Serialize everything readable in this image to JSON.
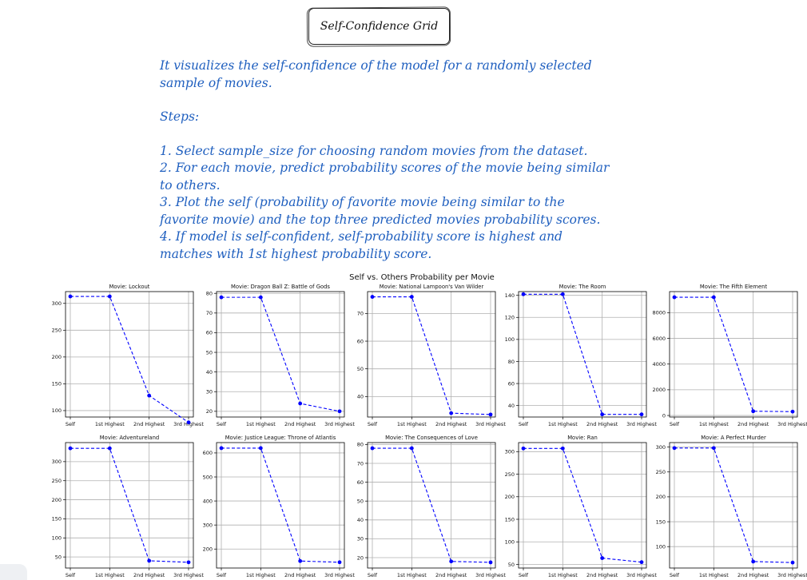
{
  "header": {
    "title": "Self-Confidence Grid"
  },
  "description": {
    "intro_lines": [
      "It visualizes the self-confidence of the model for a randomly selected",
      "sample of movies."
    ],
    "steps_heading": "Steps:",
    "steps_lines": [
      "1. Select sample_size for choosing random movies from the dataset.",
      "2. For each movie, predict probability scores of the movie being similar",
      "to others.",
      "3. Plot the self (probability of favorite movie being similar to the",
      "favorite movie) and the top three predicted movies probability scores.",
      "4. If model is self-confident, self-probability score is highest and",
      "matches with 1st highest probability score."
    ]
  },
  "chart_data": {
    "type": "line",
    "suptitle": "Self vs. Others Probability per Movie",
    "categories": [
      "Self",
      "1st Highest",
      "2nd Highest",
      "3rd Highest"
    ],
    "line_color": "#0000ff",
    "line_style": "dashed",
    "marker": "circle",
    "grid": true,
    "subplots": [
      {
        "title": "Movie: Lockout",
        "values": [
          313,
          313,
          128,
          78
        ],
        "yticks": [
          100,
          150,
          200,
          250,
          300
        ],
        "ylim": [
          88,
          322
        ]
      },
      {
        "title": "Movie: Dragon Ball Z: Battle of Gods",
        "values": [
          78,
          78,
          24,
          20
        ],
        "yticks": [
          20,
          30,
          40,
          50,
          60,
          70,
          80
        ],
        "ylim": [
          17.1,
          80.9
        ]
      },
      {
        "title": "Movie: National Lampoon's Van Wilder",
        "values": [
          76,
          76,
          34,
          33.5
        ],
        "yticks": [
          40,
          50,
          60,
          70
        ],
        "ylim": [
          32.6,
          77.9
        ]
      },
      {
        "title": "Movie: The Room",
        "values": [
          141,
          141,
          32,
          32
        ],
        "yticks": [
          40,
          60,
          80,
          100,
          120,
          140
        ],
        "ylim": [
          29.6,
          143.4
        ]
      },
      {
        "title": "Movie: The Fifth Element",
        "values": [
          9200,
          9200,
          330,
          300
        ],
        "yticks": [
          0,
          2000,
          4000,
          6000,
          8000
        ],
        "ylim": [
          -121,
          9640
        ]
      },
      {
        "title": "Movie: Adventureland",
        "values": [
          335,
          335,
          40,
          36
        ],
        "yticks": [
          50,
          100,
          150,
          200,
          250,
          300
        ],
        "ylim": [
          21,
          350
        ]
      },
      {
        "title": "Movie: Justice League: Throne of Atlantis",
        "values": [
          620,
          620,
          150,
          145
        ],
        "yticks": [
          200,
          300,
          400,
          500,
          600
        ],
        "ylim": [
          121,
          643
        ]
      },
      {
        "title": "Movie: The Consequences of Love",
        "values": [
          78,
          78,
          18,
          17.5
        ],
        "yticks": [
          20,
          30,
          40,
          50,
          60,
          70,
          80
        ],
        "ylim": [
          14.5,
          81
        ]
      },
      {
        "title": "Movie: Ran",
        "values": [
          307,
          307,
          64,
          55
        ],
        "yticks": [
          50,
          100,
          150,
          200,
          250,
          300
        ],
        "ylim": [
          42,
          320
        ]
      },
      {
        "title": "Movie: A Perfect Murder",
        "values": [
          298,
          298,
          70,
          68
        ],
        "yticks": [
          100,
          150,
          200,
          250,
          300
        ],
        "ylim": [
          57,
          309
        ]
      }
    ]
  }
}
